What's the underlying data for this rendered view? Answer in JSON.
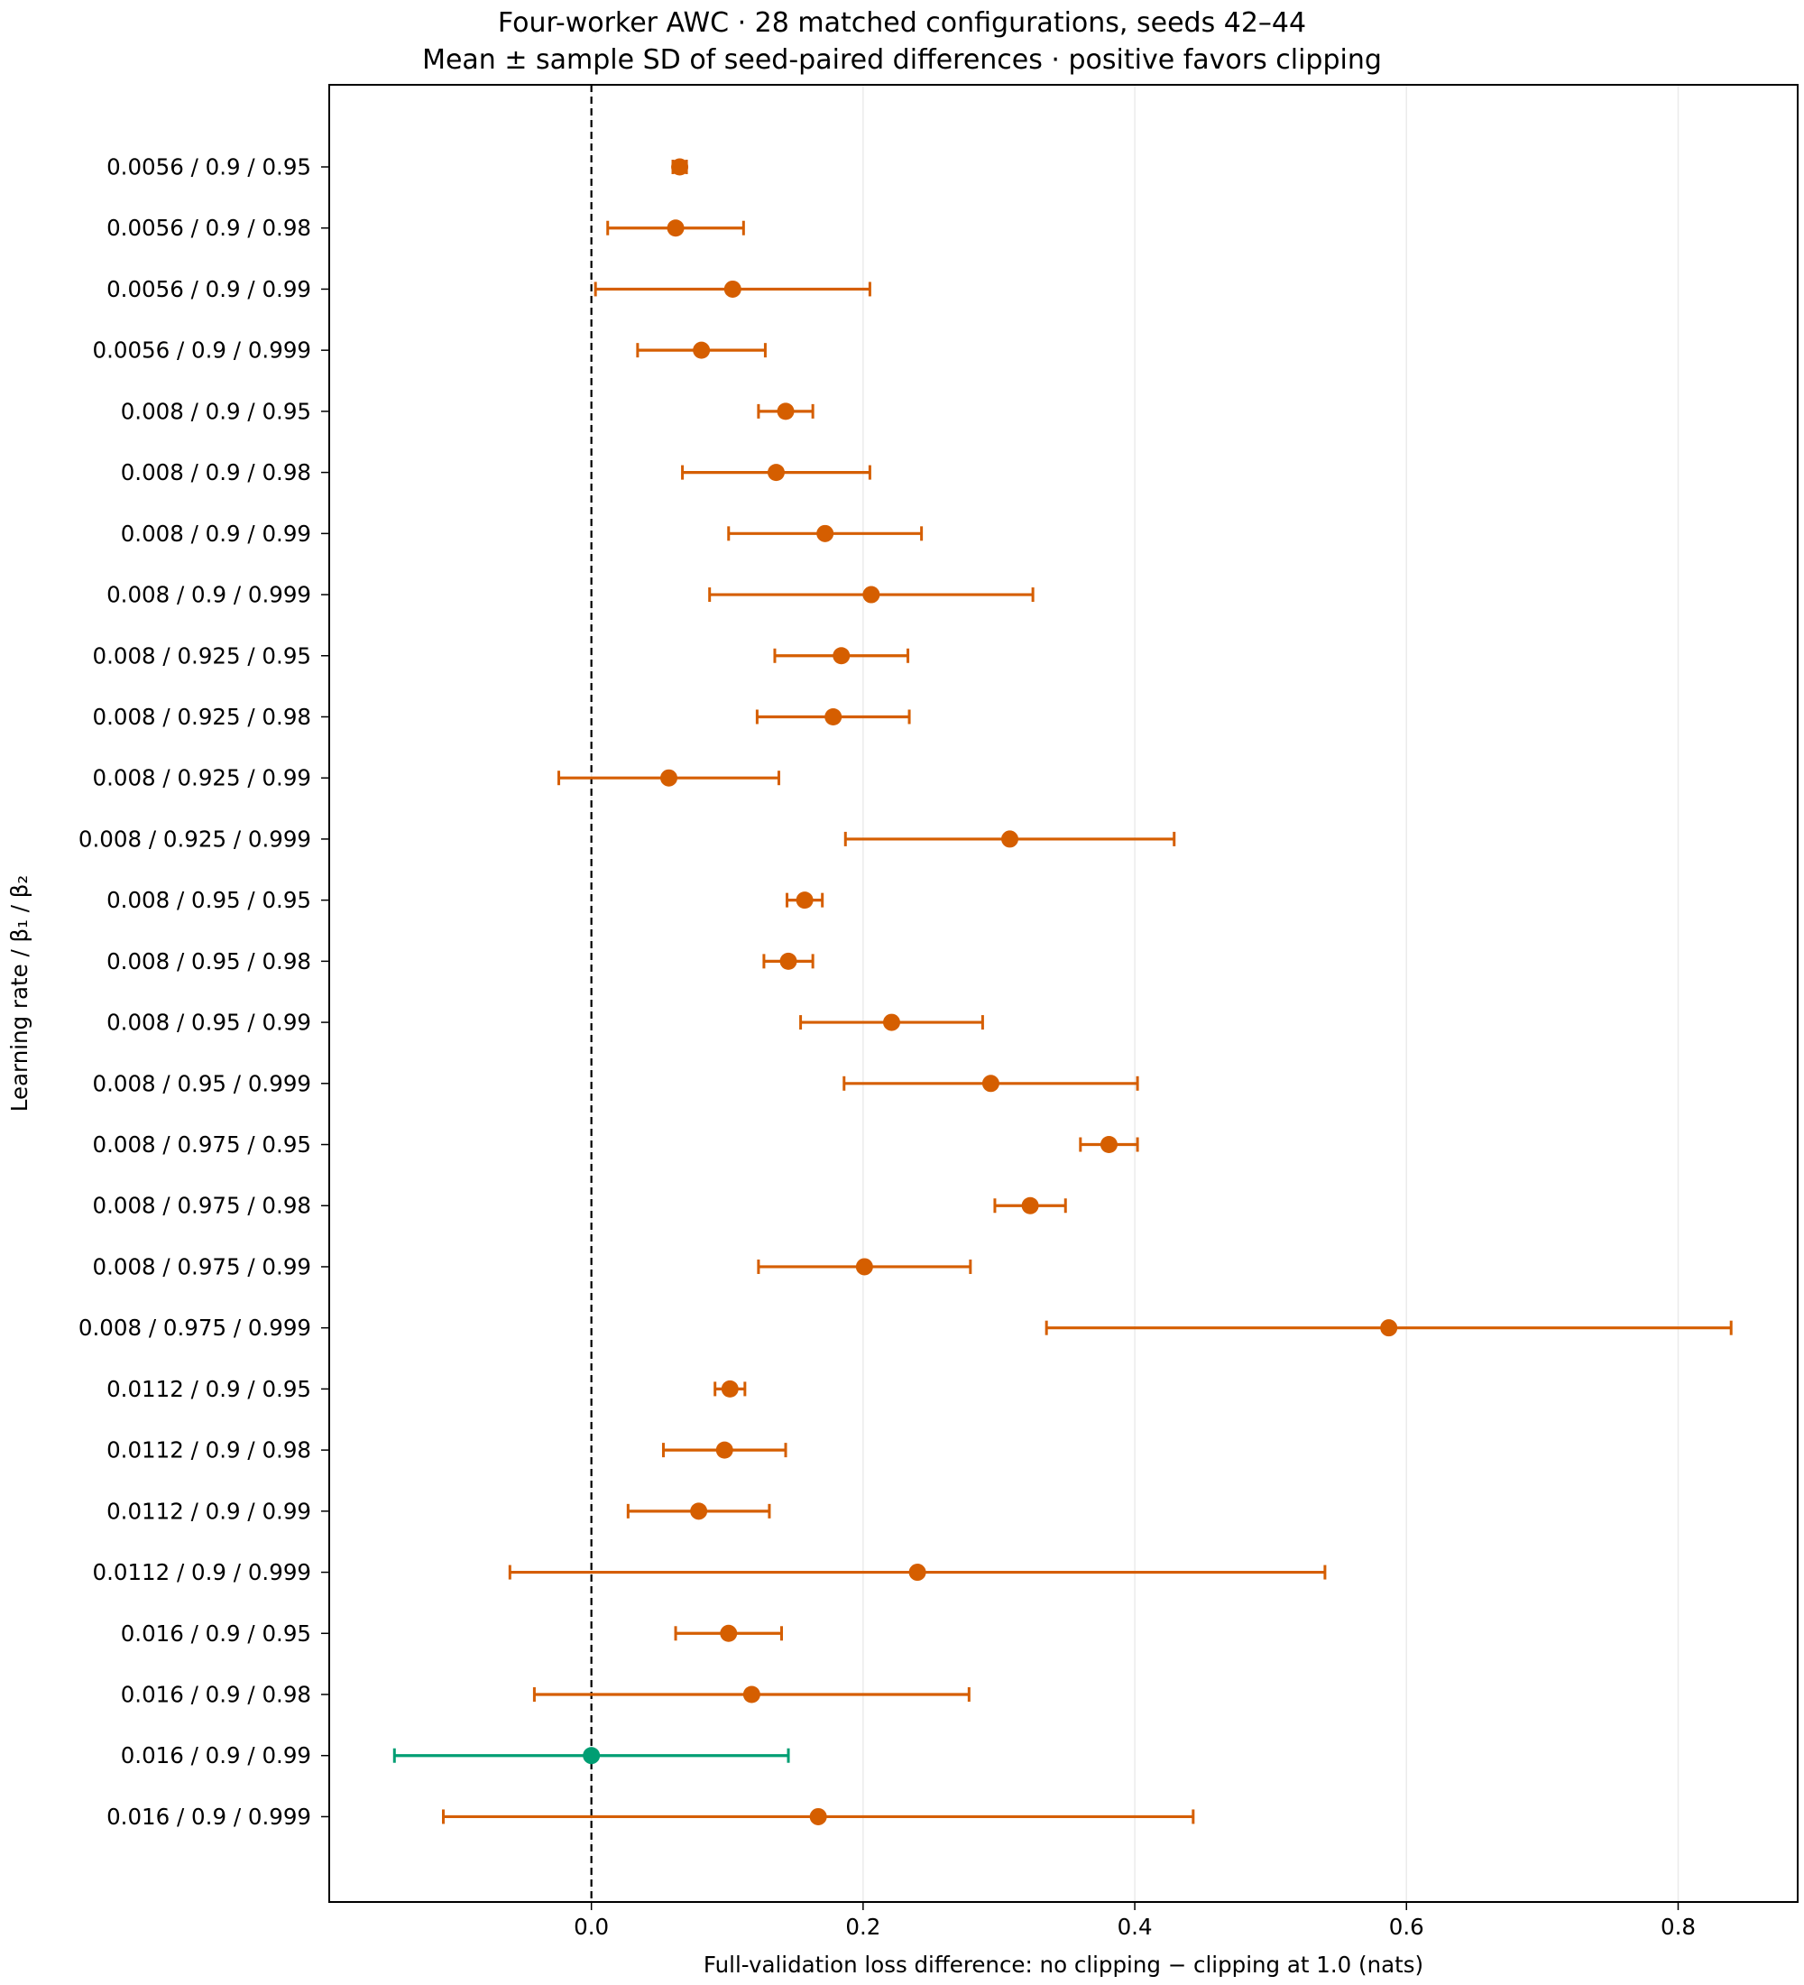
{
  "chart_data": {
    "type": "scatter",
    "title": "Four-worker AWC · 28 matched configurations, seeds 42–44",
    "subtitle": "Mean ± sample SD of seed-paired differences · positive favors clipping",
    "xlabel": "Full-validation loss difference: no clipping − clipping at 1.0 (nats)",
    "ylabel": "Learning rate / β₁ / β₂",
    "xlim": [
      -0.193,
      0.888
    ],
    "xticks": [
      0.0,
      0.2,
      0.4,
      0.6,
      0.8
    ],
    "xtick_labels": [
      "0.0",
      "0.2",
      "0.4",
      "0.6",
      "0.8"
    ],
    "grid": "vertical",
    "reference_line": 0.0,
    "colors": {
      "positive": "#d55e00",
      "nonpositive": "#009e73",
      "grid": "#ebebeb"
    },
    "categories": [
      "0.0056 / 0.9 / 0.95",
      "0.0056 / 0.9 / 0.98",
      "0.0056 / 0.9 / 0.99",
      "0.0056 / 0.9 / 0.999",
      "0.008 / 0.9 / 0.95",
      "0.008 / 0.9 / 0.98",
      "0.008 / 0.9 / 0.99",
      "0.008 / 0.9 / 0.999",
      "0.008 / 0.925 / 0.95",
      "0.008 / 0.925 / 0.98",
      "0.008 / 0.925 / 0.99",
      "0.008 / 0.925 / 0.999",
      "0.008 / 0.95 / 0.95",
      "0.008 / 0.95 / 0.98",
      "0.008 / 0.95 / 0.99",
      "0.008 / 0.95 / 0.999",
      "0.008 / 0.975 / 0.95",
      "0.008 / 0.975 / 0.98",
      "0.008 / 0.975 / 0.99",
      "0.008 / 0.975 / 0.999",
      "0.0112 / 0.9 / 0.95",
      "0.0112 / 0.9 / 0.98",
      "0.0112 / 0.9 / 0.99",
      "0.0112 / 0.9 / 0.999",
      "0.016 / 0.9 / 0.95",
      "0.016 / 0.9 / 0.98",
      "0.016 / 0.9 / 0.99",
      "0.016 / 0.9 / 0.999"
    ],
    "means": [
      0.065,
      0.062,
      0.104,
      0.081,
      0.143,
      0.136,
      0.172,
      0.206,
      0.184,
      0.178,
      0.057,
      0.308,
      0.157,
      0.145,
      0.221,
      0.294,
      0.381,
      0.323,
      0.201,
      0.587,
      0.102,
      0.098,
      0.079,
      0.24,
      0.101,
      0.118,
      0.0,
      0.167
    ],
    "sd": [
      0.005,
      0.05,
      0.101,
      0.047,
      0.02,
      0.069,
      0.071,
      0.119,
      0.049,
      0.056,
      0.081,
      0.121,
      0.013,
      0.018,
      0.067,
      0.108,
      0.021,
      0.026,
      0.078,
      0.252,
      0.011,
      0.045,
      0.052,
      0.3,
      0.039,
      0.16,
      0.145,
      0.276
    ]
  }
}
